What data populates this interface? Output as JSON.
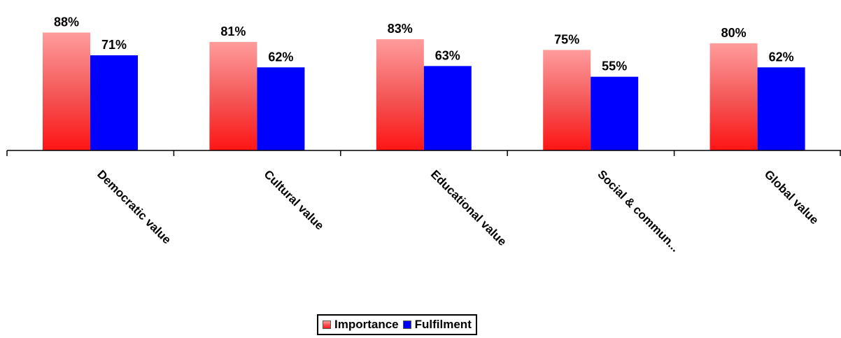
{
  "chart_data": {
    "type": "bar",
    "categories": [
      "Democratic value",
      "Cultural value",
      "Educational value",
      "Social & commun...",
      "Global value"
    ],
    "series": [
      {
        "name": "Importance",
        "values": [
          88,
          81,
          83,
          75,
          80
        ],
        "labels": [
          "88%",
          "81%",
          "83%",
          "75%",
          "80%"
        ],
        "color": "#ff3b3b"
      },
      {
        "name": "Fulfilment",
        "values": [
          71,
          62,
          63,
          55,
          62
        ],
        "labels": [
          "71%",
          "62%",
          "63%",
          "55%",
          "62%"
        ],
        "color": "#0000ff"
      }
    ],
    "ylim": [
      0,
      100
    ],
    "grid": false,
    "legend_position": "bottom-center"
  },
  "legend": {
    "importance_label": "Importance",
    "fulfilment_label": "Fulfilment"
  }
}
